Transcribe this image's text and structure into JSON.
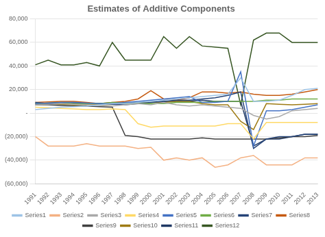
{
  "chart_data": {
    "type": "line",
    "title": "Estimates of Additive Components",
    "categories": [
      "1991",
      "1992",
      "1993",
      "1994",
      "1995",
      "1996",
      "1997",
      "1998",
      "1999",
      "2000",
      "2001",
      "2002",
      "2003",
      "2004",
      "2005",
      "2006",
      "2007",
      "2008",
      "2009",
      "2010",
      "2011",
      "2012",
      "2013"
    ],
    "series": [
      {
        "name": "Series1",
        "color": "#9DC3E6",
        "values": [
          3000,
          4000,
          5000,
          5500,
          6000,
          7000,
          8000,
          8000,
          9000,
          10000,
          11000,
          12000,
          13000,
          14000,
          15000,
          16000,
          30000,
          10000,
          10000,
          11000,
          15000,
          20000,
          21000
        ]
      },
      {
        "name": "Series2",
        "color": "#F4B183",
        "values": [
          -20000,
          -28000,
          -28000,
          -28000,
          -26000,
          -28000,
          -28000,
          -28000,
          -30000,
          -29000,
          -40000,
          -38000,
          -40000,
          -38000,
          -46000,
          -44000,
          -38000,
          -36000,
          -44000,
          -44000,
          -44000,
          -38000,
          -38000
        ]
      },
      {
        "name": "Series3",
        "color": "#A9A9A9",
        "values": [
          7000,
          7500,
          8000,
          7500,
          7000,
          6500,
          6000,
          7000,
          8000,
          7000,
          9000,
          7000,
          6000,
          7000,
          6000,
          5000,
          4000,
          -2000,
          -5000,
          -3000,
          2000,
          3000,
          4000
        ]
      },
      {
        "name": "Series4",
        "color": "#FFD966",
        "values": [
          5000,
          4500,
          4000,
          3500,
          3000,
          3000,
          3500,
          3000,
          -9000,
          -12000,
          -11000,
          -11000,
          -11000,
          -11000,
          -11000,
          -9000,
          -9000,
          -22000,
          -8000,
          -8000,
          -8000,
          -8000,
          -8000
        ]
      },
      {
        "name": "Series5",
        "color": "#4472C4",
        "values": [
          8000,
          8500,
          9000,
          9000,
          8500,
          8000,
          8000,
          9000,
          10000,
          11000,
          12000,
          13000,
          14000,
          9000,
          9000,
          10000,
          35000,
          -28000,
          2000,
          2000,
          3000,
          5000,
          7000
        ]
      },
      {
        "name": "Series6",
        "color": "#70AD47",
        "values": [
          8000,
          8500,
          9000,
          8000,
          8000,
          8000,
          9000,
          8500,
          8000,
          8000,
          8000,
          9000,
          9000,
          9000,
          10000,
          10000,
          10000,
          10000,
          11000,
          11000,
          12000,
          12000,
          12000
        ]
      },
      {
        "name": "Series7",
        "color": "#264478",
        "values": [
          9000,
          8000,
          8000,
          8500,
          8000,
          8000,
          7500,
          7000,
          8000,
          9000,
          10000,
          11000,
          11000,
          12000,
          13000,
          15000,
          18000,
          -30000,
          -22000,
          -20000,
          -20000,
          -18000,
          -18000
        ]
      },
      {
        "name": "Series8",
        "color": "#C55A11",
        "values": [
          9000,
          9500,
          10000,
          10000,
          9000,
          8000,
          9000,
          10000,
          12000,
          19000,
          12000,
          11000,
          13000,
          18000,
          18000,
          17000,
          18000,
          16000,
          15000,
          15000,
          16000,
          18000,
          20000
        ]
      },
      {
        "name": "Series9",
        "color": "#404040",
        "values": [
          7000,
          7000,
          6500,
          6000,
          6000,
          5500,
          5000,
          -19000,
          -20000,
          -22000,
          -22000,
          -22000,
          -22000,
          -21000,
          -22000,
          -22000,
          -22000,
          -22000,
          -22000,
          -21000,
          -20000,
          -20000,
          -19000
        ]
      },
      {
        "name": "Series10",
        "color": "#9E7B14",
        "values": [
          8000,
          8000,
          7500,
          7000,
          7000,
          7000,
          7500,
          8000,
          8500,
          9000,
          9000,
          10000,
          10000,
          8000,
          7000,
          7000,
          -7000,
          -14000,
          8000,
          7500,
          7000,
          7500,
          8000
        ]
      },
      {
        "name": "Series11",
        "color": "#1F3864",
        "values": [
          8000,
          8500,
          9000,
          9000,
          8500,
          8000,
          8000,
          8500,
          9000,
          9000,
          10000,
          10000,
          10000,
          11000,
          10000,
          10000,
          10000,
          -28000,
          -22000,
          -22000,
          -20000,
          -18000,
          -18000
        ]
      },
      {
        "name": "Series12",
        "color": "#375623",
        "values": [
          41000,
          45000,
          41000,
          41000,
          43000,
          40000,
          60000,
          45000,
          45000,
          45000,
          65000,
          55000,
          65000,
          57000,
          56000,
          55000,
          7000,
          62000,
          68000,
          68000,
          60000,
          60000,
          60000
        ]
      }
    ],
    "ylim": [
      -60000,
      80000
    ],
    "yticks": [
      {
        "value": -60000,
        "label": "(60,000)"
      },
      {
        "value": -40000,
        "label": "(40,000)"
      },
      {
        "value": -20000,
        "label": "(20,000)"
      },
      {
        "value": 0,
        "label": "-"
      },
      {
        "value": 20000,
        "label": "20,000"
      },
      {
        "value": 40000,
        "label": "40,000"
      },
      {
        "value": 60000,
        "label": "60,000"
      },
      {
        "value": 80000,
        "label": "80,000"
      }
    ],
    "grid": true,
    "legend": "bottom"
  }
}
